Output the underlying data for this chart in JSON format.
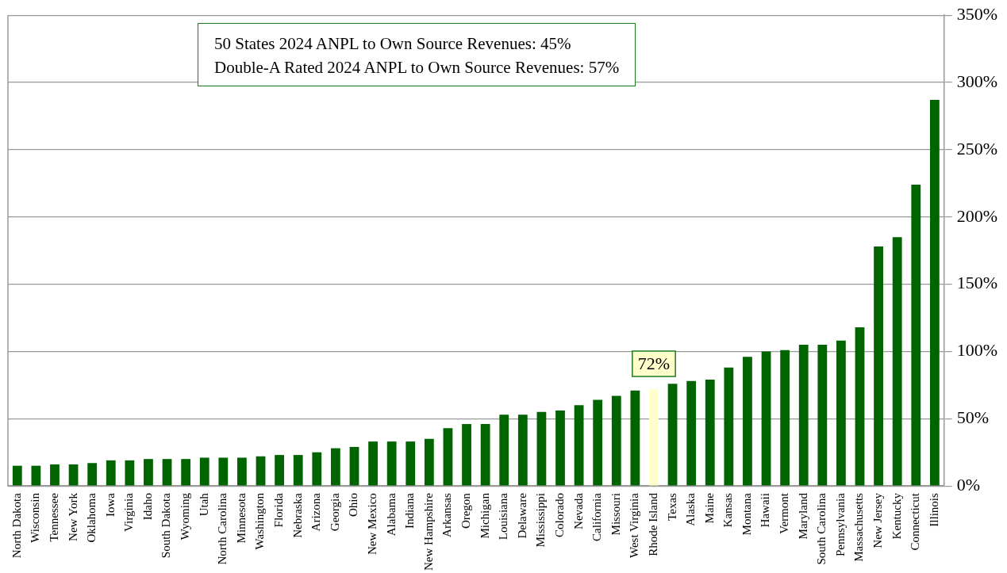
{
  "chart_data": {
    "type": "bar",
    "categories": [
      "North Dakota",
      "Wisconsin",
      "Tennessee",
      "New York",
      "Oklahoma",
      "Iowa",
      "Virginia",
      "Idaho",
      "South Dakota",
      "Wyoming",
      "Utah",
      "North Carolina",
      "Minnesota",
      "Washington",
      "Florida",
      "Nebraska",
      "Arizona",
      "Georgia",
      "Ohio",
      "New Mexico",
      "Alabama",
      "Indiana",
      "New Hampshire",
      "Arkansas",
      "Oregon",
      "Michigan",
      "Louisiana",
      "Delaware",
      "Mississippi",
      "Colorado",
      "Nevada",
      "California",
      "Missouri",
      "West Virginia",
      "Rhode Island",
      "Texas",
      "Alaska",
      "Maine",
      "Kansas",
      "Montana",
      "Hawaii",
      "Vermont",
      "Maryland",
      "South Carolina",
      "Pennsylvania",
      "Massachusetts",
      "New Jersey",
      "Kentucky",
      "Connecticut",
      "Illinois"
    ],
    "values": [
      15,
      15,
      16,
      16,
      17,
      19,
      19,
      20,
      20,
      20,
      21,
      21,
      21,
      22,
      23,
      23,
      25,
      28,
      29,
      33,
      33,
      33,
      35,
      43,
      46,
      46,
      53,
      53,
      55,
      56,
      60,
      64,
      67,
      71,
      72,
      76,
      78,
      79,
      88,
      96,
      100,
      101,
      105,
      105,
      108,
      118,
      178,
      185,
      224,
      287
    ],
    "colors": [
      "#006400",
      "#006400",
      "#006400",
      "#006400",
      "#006400",
      "#006400",
      "#006400",
      "#006400",
      "#006400",
      "#006400",
      "#006400",
      "#006400",
      "#006400",
      "#006400",
      "#006400",
      "#006400",
      "#006400",
      "#006400",
      "#006400",
      "#006400",
      "#006400",
      "#006400",
      "#006400",
      "#006400",
      "#006400",
      "#006400",
      "#006400",
      "#006400",
      "#006400",
      "#006400",
      "#006400",
      "#006400",
      "#006400",
      "#006400",
      "#ffffcc",
      "#006400",
      "#006400",
      "#006400",
      "#006400",
      "#006400",
      "#006400",
      "#006400",
      "#006400",
      "#006400",
      "#006400",
      "#006400",
      "#006400",
      "#006400",
      "#006400",
      "#006400"
    ],
    "ylim": [
      0,
      350
    ],
    "yticks": [
      {
        "value": 0,
        "label": "0%"
      },
      {
        "value": 50,
        "label": "50%"
      },
      {
        "value": 100,
        "label": "100%"
      },
      {
        "value": 150,
        "label": "150%"
      },
      {
        "value": 200,
        "label": "200%"
      },
      {
        "value": 250,
        "label": "250%"
      },
      {
        "value": 300,
        "label": "300%"
      },
      {
        "value": 350,
        "label": "350%"
      }
    ],
    "grid": "y",
    "annotations": [
      "50 States 2024 ANPL to Own Source Revenues: 45%",
      "Double-A Rated 2024 ANPL to Own Source Revenues: 57%",
      {
        "text": "72%",
        "x": "Rhode Island",
        "y": 72
      }
    ]
  }
}
